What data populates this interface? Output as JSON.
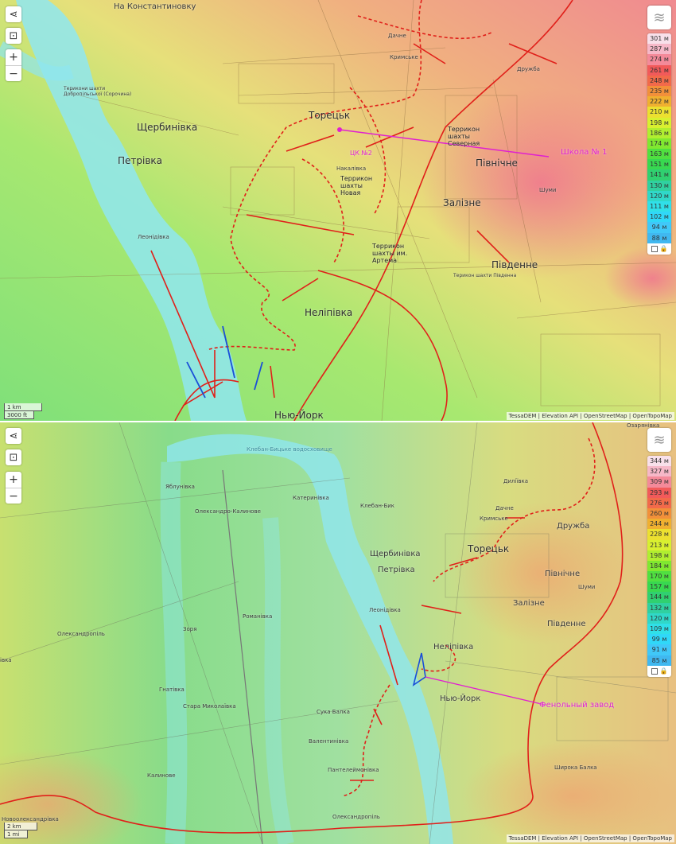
{
  "top_map": {
    "labels": {
      "konst": "На Константиновку",
      "toretsk": "Торецьк",
      "shcherb": "Щербинівка",
      "petrivka": "Петрівка",
      "pivnichne": "Північне",
      "zalizne": "Залізне",
      "pivdenne": "Південне",
      "nelipivka": "Неліпівка",
      "newyork": "Нью-Йорк",
      "leonidivka": "Леонідівка",
      "nakalivka": "Накалівка",
      "druzhba": "Дружба",
      "krymske": "Кримське",
      "dachne": "Дачне",
      "shumy": "Шуми",
      "terr_north": "Террикон шахты Северная",
      "terr_new": "Террикон шахты Новая",
      "terr_artem": "Террикон шахты им. Артема",
      "school": "Школа № 1",
      "tsk": "ЦК №2",
      "terr_dobr": "Терикони шахти Добропільської (Сорочина)",
      "terr_pivd": "Терикон шахти Південна"
    },
    "legend": [
      "301 м",
      "287 м",
      "274 м",
      "261 м",
      "248 м",
      "235 м",
      "222 м",
      "210 м",
      "198 м",
      "186 м",
      "174 м",
      "163 м",
      "151 м",
      "141 м",
      "130 м",
      "120 м",
      "111 м",
      "102 м",
      "94 м",
      "88 м"
    ],
    "scale": {
      "metric": "1 km",
      "imperial": "3000 ft"
    }
  },
  "bottom_map": {
    "labels": {
      "ozar": "Озарянівка",
      "kleban": "Клебан-Бик",
      "kater": "Катеринівка",
      "yablun": "Яблунівка",
      "okal": "Олександро-Калинове",
      "dylii": "Диліївка",
      "dachne": "Дачне",
      "krymske": "Кримське",
      "druzhba": "Дружба",
      "toretsk": "Торецьк",
      "shcherb": "Щербинівка",
      "petrivka": "Петрівка",
      "pivnichne": "Північне",
      "shumy": "Шуми",
      "zalizne": "Залізне",
      "leonid": "Леонідівка",
      "roman": "Романівка",
      "olekspil": "Олександропіль",
      "zorya": "Зоря",
      "pivdenne": "Південне",
      "nelip": "Неліпівка",
      "hnativka": "Гнатівка",
      "newyork": "Нью-Йорк",
      "fenol": "Фенольный завод",
      "staramyk": "Стара Миколаївка",
      "sukabalka": "Сука Балка",
      "valent": "Валентинівка",
      "kalyn": "Калинове",
      "pantel": "Пантелеймонівка",
      "shyroka": "Широка Балка",
      "olekspil2": "Олександропіль",
      "novool": "Новоолександрівка",
      "kleban_res": "Клебан-Бицьке водосховище",
      "ivka": "івка"
    },
    "legend": [
      "344 м",
      "327 м",
      "309 м",
      "293 м",
      "276 м",
      "260 м",
      "244 м",
      "228 м",
      "213 м",
      "198 м",
      "184 м",
      "170 м",
      "157 м",
      "144 м",
      "132 м",
      "120 м",
      "109 м",
      "99 м",
      "91 м",
      "85 м"
    ],
    "scale": {
      "metric": "2 km",
      "imperial": "1 mi"
    }
  },
  "controls": {
    "share": "share-icon",
    "locate": "locate-icon",
    "zoom_in": "+",
    "zoom_out": "−"
  },
  "attribution": "TessaDEM | Elevation API | OpenStreetMap | OpenTopoMap",
  "colors": {
    "russian_advance": "#e0201a",
    "ukrainian_counter": "#1a4fd8",
    "annotation": "#e020d0",
    "water": "#8fe6f0"
  }
}
